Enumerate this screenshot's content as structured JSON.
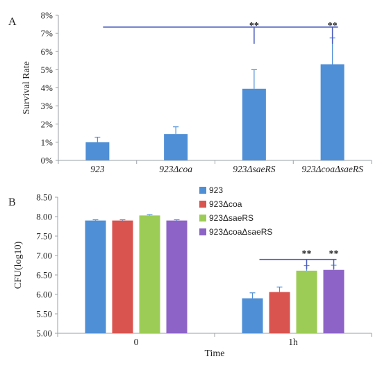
{
  "chart_data": [
    {
      "type": "bar",
      "panel_label": "A",
      "ylabel": "Survival Rate",
      "xlabel": "",
      "y_unit": "%",
      "ylim": [
        0,
        8
      ],
      "yticks": [
        "0%",
        "1%",
        "2%",
        "3%",
        "4%",
        "5%",
        "6%",
        "7%",
        "8%"
      ],
      "categories": [
        {
          "base": "923",
          "italic": ""
        },
        {
          "base": "923Δ",
          "italic": "coa"
        },
        {
          "base": "923Δ",
          "italic": "saeRS"
        },
        {
          "base": "923Δ",
          "italic": "coaΔsaeRS"
        }
      ],
      "values": [
        1.0,
        1.45,
        3.95,
        5.3
      ],
      "errors": [
        0.28,
        0.4,
        1.05,
        1.45
      ],
      "color": "#4f8fd6",
      "grid": false,
      "significance": {
        "label": "**",
        "bracket_level": 7.35,
        "marks": [
          2,
          3
        ]
      }
    },
    {
      "type": "bar",
      "panel_label": "B",
      "ylabel": "CFU(log10)",
      "xlabel": "Time",
      "ylim": [
        5.0,
        8.5
      ],
      "yticks": [
        "5.00",
        "5.50",
        "6.00",
        "6.50",
        "7.00",
        "7.50",
        "8.00",
        "8.50"
      ],
      "categories": [
        "0",
        "1h"
      ],
      "series": [
        {
          "name": "923",
          "color": "#4f8fd6",
          "values": [
            7.9,
            5.9
          ],
          "errors": [
            0.02,
            0.14
          ]
        },
        {
          "name": "923Δcoa",
          "color": "#d9534f",
          "values": [
            7.9,
            6.06
          ],
          "errors": [
            0.02,
            0.13
          ]
        },
        {
          "name": "923ΔsaeRS",
          "color": "#9ccc55",
          "values": [
            8.03,
            6.61
          ],
          "errors": [
            0.02,
            0.13
          ]
        },
        {
          "name": "923ΔcoaΔsaeRS",
          "color": "#8d63c7",
          "values": [
            7.9,
            6.63
          ],
          "errors": [
            0.02,
            0.12
          ]
        }
      ],
      "legend": "top-center",
      "grid": false,
      "significance": {
        "label": "**",
        "bracket_level": 6.9,
        "category": 1,
        "marks": [
          2,
          3
        ]
      }
    }
  ]
}
